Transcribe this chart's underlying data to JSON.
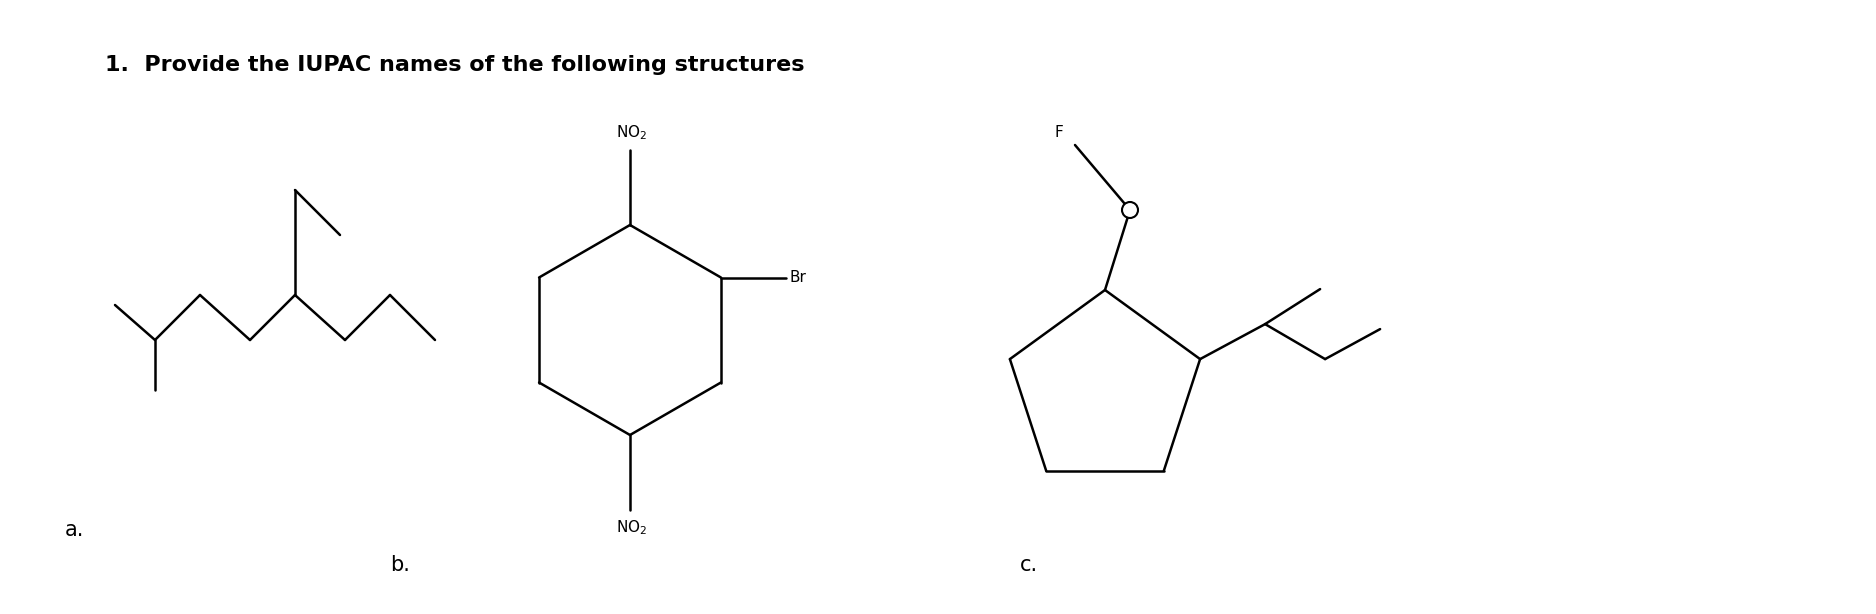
{
  "title": "1.  Provide the IUPAC names of the following structures",
  "title_fontsize": 16,
  "title_fontweight": "bold",
  "bg_color": "#ffffff",
  "label_a": "a.",
  "label_b": "b.",
  "label_c": "c.",
  "label_fontsize": 15,
  "lw": 1.8
}
